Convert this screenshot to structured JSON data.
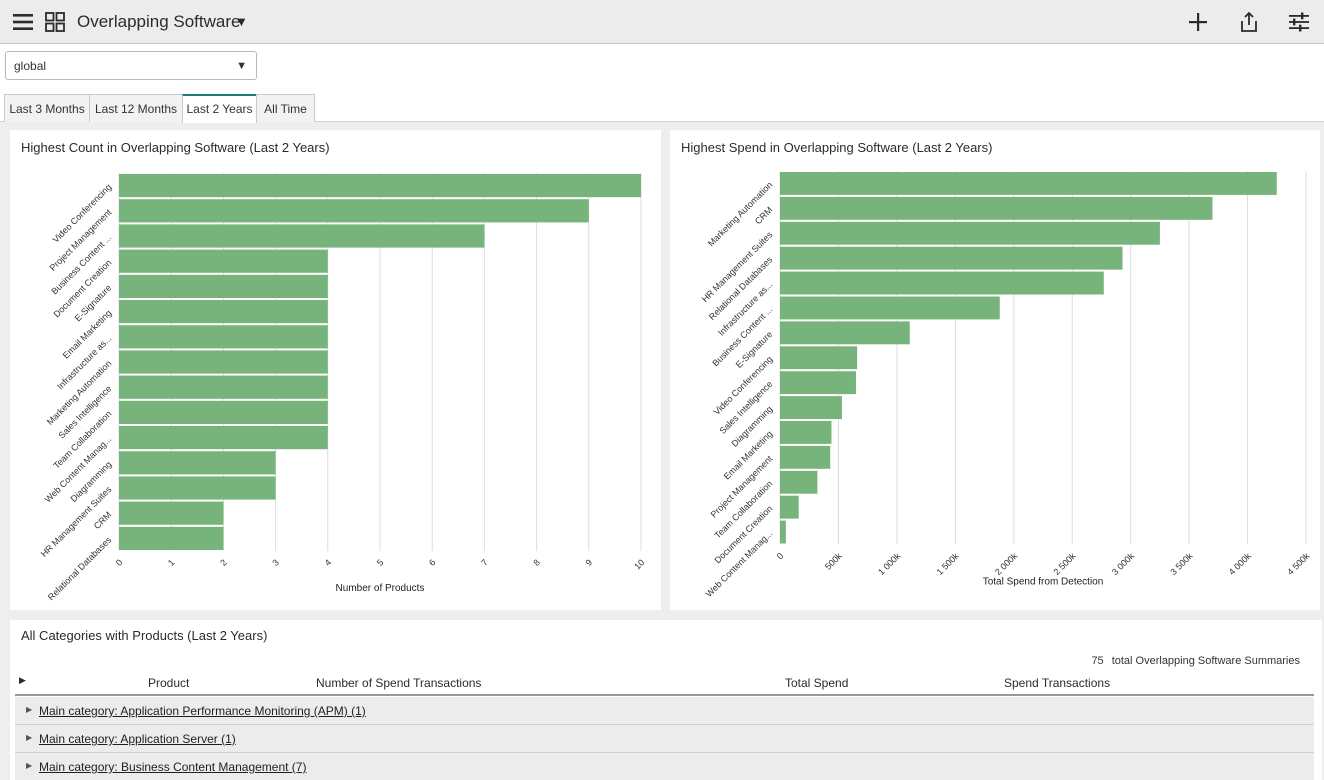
{
  "header": {
    "title": "Overlapping Software",
    "icons": [
      "hamburger-menu-icon",
      "grid-icon",
      "caret-down-icon",
      "plus-icon",
      "share-icon",
      "sliders-icon"
    ]
  },
  "filter": {
    "scope_value": "global"
  },
  "tabs": [
    {
      "label": "Last 3 Months",
      "active": false
    },
    {
      "label": "Last 12 Months",
      "active": false
    },
    {
      "label": "Last 2 Years",
      "active": true
    },
    {
      "label": "All Time",
      "active": false
    }
  ],
  "colors": {
    "bar": "#77b47b",
    "accent": "#1d7a78",
    "grid": "#dcdcdc"
  },
  "chart_data": [
    {
      "type": "bar",
      "orientation": "horizontal",
      "title": "Highest Count in Overlapping Software (Last 2 Years)",
      "xlabel": "Number of Products",
      "ylabel": "",
      "xlim": [
        0,
        10
      ],
      "xticks": [
        "0",
        "1",
        "2",
        "3",
        "4",
        "5",
        "6",
        "7",
        "8",
        "9",
        "10"
      ],
      "grid": true,
      "categories": [
        "Video Conferencing",
        "Project Management",
        "Business Content ...",
        "Document Creation",
        "E-Signature",
        "Email Marketing",
        "Infrastructure as...",
        "Marketing Automation",
        "Sales Intelligence",
        "Team Collaboration",
        "Web Content Manag...",
        "Diagramming",
        "HR Management Suites",
        "CRM",
        "Relational Databases"
      ],
      "values": [
        10,
        9,
        7,
        4,
        4,
        4,
        4,
        4,
        4,
        4,
        4,
        3,
        3,
        2,
        2
      ]
    },
    {
      "type": "bar",
      "orientation": "horizontal",
      "title": "Highest Spend in Overlapping Software (Last 2 Years)",
      "xlabel": "Total Spend from Detection",
      "ylabel": "",
      "xlim": [
        0,
        4500000
      ],
      "xticks": [
        "0",
        "500k",
        "1 000k",
        "1 500k",
        "2 000k",
        "2 500k",
        "3 000k",
        "3 500k",
        "4 000k",
        "4 500k"
      ],
      "grid": true,
      "categories": [
        "Marketing Automation",
        "CRM",
        "HR Management Suites",
        "Relational Databases",
        "Infrastructure as...",
        "Business Content ...",
        "E-Signature",
        "Video Conferencing",
        "Sales Intelligence",
        "Diagramming",
        "Email Marketing",
        "Project Management",
        "Team Collaboration",
        "Document Creation",
        "Web Content Manag..."
      ],
      "values": [
        4250000,
        3700000,
        3250000,
        2930000,
        2770000,
        1880000,
        1110000,
        660000,
        650000,
        530000,
        440000,
        430000,
        320000,
        160000,
        50000
      ]
    }
  ],
  "table": {
    "title": "All Categories with Products (Last 2 Years)",
    "total_count": "75",
    "total_label": "total Overlapping Software Summaries",
    "columns": [
      "Product",
      "Number of Spend Transactions",
      "Total Spend",
      "Spend Transactions"
    ],
    "rows": [
      "Main category: Application Performance Monitoring (APM) (1)",
      "Main category: Application Server (1)",
      "Main category: Business Content Management (7)"
    ]
  }
}
